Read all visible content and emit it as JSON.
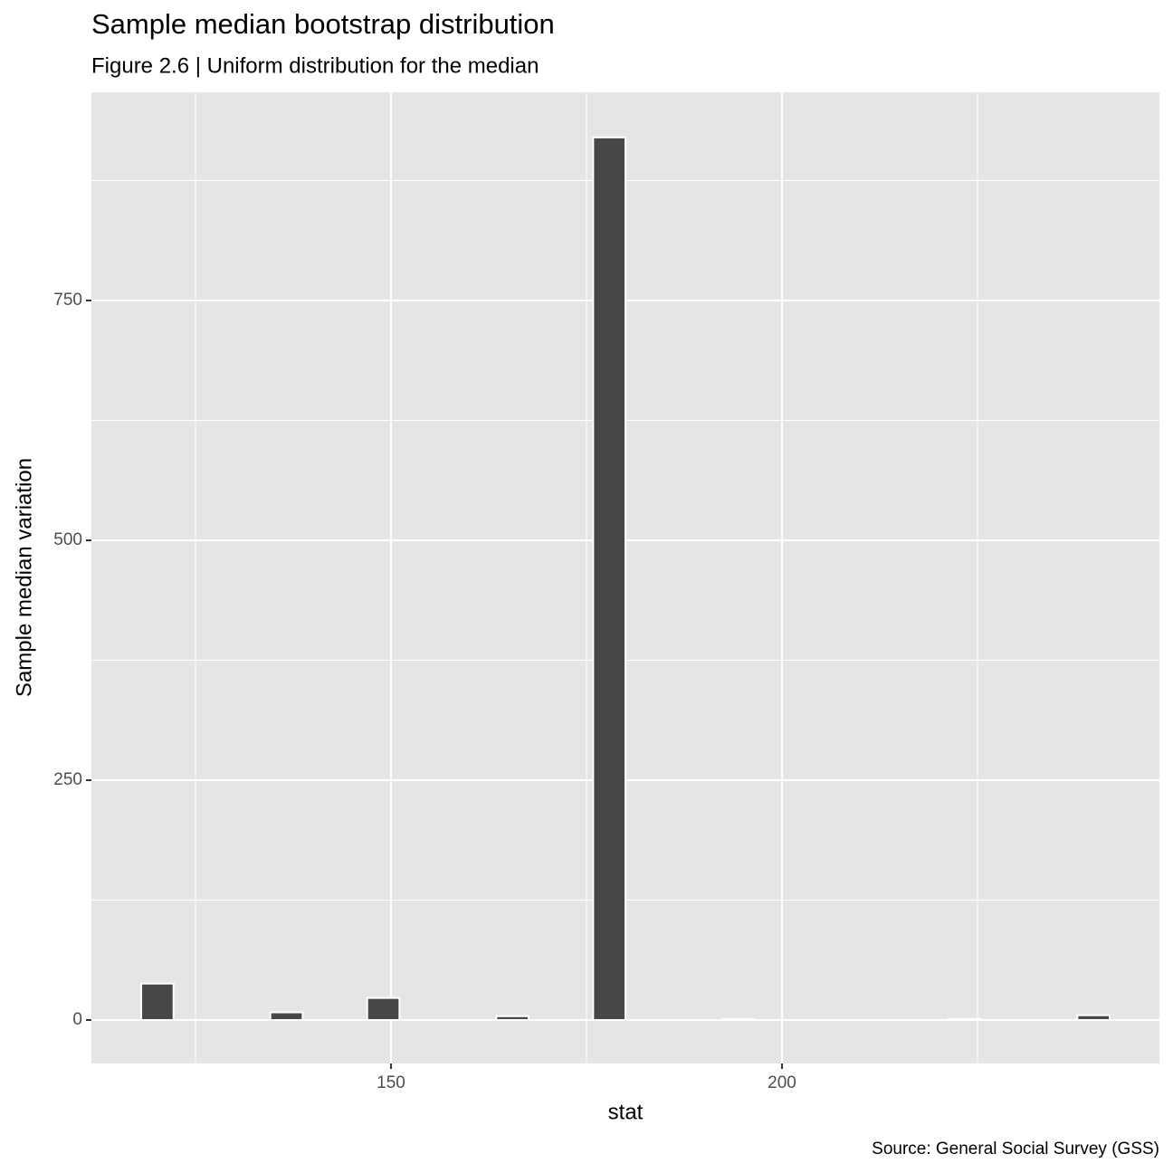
{
  "chart_data": {
    "type": "histogram",
    "title": "Sample median bootstrap distribution",
    "subtitle": "Figure 2.6 | Uniform distribution for the median",
    "caption": "Source: General Social Survey (GSS)",
    "x_label": "stat",
    "y_label": "Sample median variation",
    "bins": [
      118.06,
      122.19,
      126.32,
      130.44,
      134.57,
      138.7,
      142.83,
      146.96,
      151.08,
      155.21,
      159.34,
      163.47,
      167.6,
      171.72,
      175.85,
      179.98,
      184.11,
      188.24,
      192.36,
      196.49,
      200.62,
      204.75,
      208.88,
      213.0,
      217.13,
      221.26,
      225.39,
      229.52,
      233.64,
      237.77,
      241.9
    ],
    "values": [
      38,
      0,
      0,
      0,
      8,
      0,
      0,
      23,
      0,
      0,
      0,
      4,
      0,
      0,
      920,
      0,
      0,
      0,
      1,
      0,
      0,
      0,
      0,
      0,
      0,
      1,
      0,
      0,
      0,
      5
    ],
    "color": "#474747",
    "xlim": [
      111.69,
      248.26
    ],
    "xticks": [
      150,
      200
    ],
    "x_minor_ticks": [
      125,
      175,
      225
    ],
    "ylim": [
      -45.3,
      967
    ],
    "yticks": [
      0,
      250,
      500,
      750
    ],
    "y_minor_ticks": [
      125,
      375,
      625,
      875
    ],
    "grid": true
  }
}
